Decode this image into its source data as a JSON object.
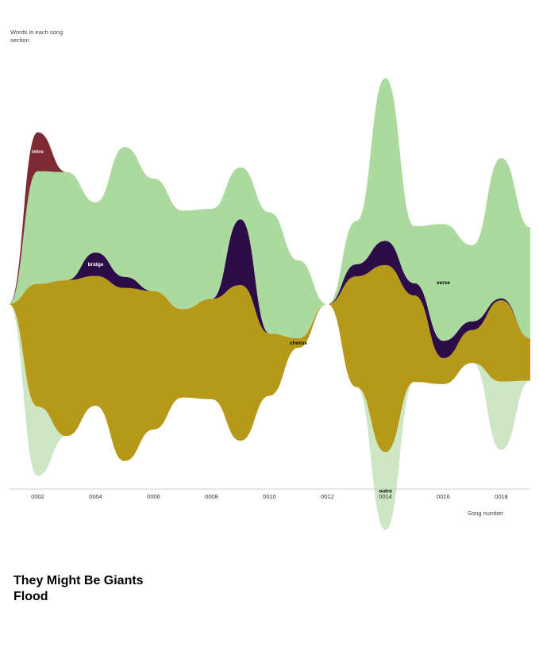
{
  "chart_data": {
    "type": "area",
    "style": "streamgraph",
    "ylabel": "Words in each song section",
    "xlabel": "Song number",
    "title": "They Might Be Giants",
    "subtitle": "Flood",
    "x": [
      1,
      2,
      3,
      4,
      5,
      6,
      7,
      8,
      9,
      10,
      11,
      12,
      13,
      14,
      15,
      16,
      17,
      18,
      19
    ],
    "tick_labels": [
      "0002",
      "0004",
      "0006",
      "0008",
      "0010",
      "0012",
      "0014",
      "0016",
      "0018"
    ],
    "tick_values": [
      2,
      4,
      6,
      8,
      10,
      12,
      14,
      16,
      18
    ],
    "series": [
      {
        "name": "intro",
        "color": "#7e2a35",
        "label_color": "#ffffff",
        "values": [
          0,
          45,
          0,
          0,
          0,
          0,
          0,
          0,
          0,
          0,
          0,
          0,
          0,
          0,
          0,
          0,
          0,
          0,
          0
        ]
      },
      {
        "name": "verse",
        "color": "#acd99d",
        "label_color": "#000000",
        "values": [
          0,
          130,
          125,
          58,
          150,
          130,
          114,
          104,
          60,
          140,
          90,
          0,
          50,
          188,
          66,
          135,
          88,
          162,
          128
        ]
      },
      {
        "name": "bridge",
        "color": "#2c0d47",
        "label_color": "#ffffff",
        "values": [
          0,
          0,
          0,
          27,
          13,
          0,
          0,
          0,
          76,
          0,
          0,
          0,
          14,
          28,
          14,
          20,
          10,
          2,
          0
        ]
      },
      {
        "name": "chorus",
        "color": "#b7991a",
        "label_color": "#000000",
        "values": [
          0,
          142,
          180,
          150,
          200,
          160,
          102,
          116,
          180,
          72,
          11,
          0,
          128,
          216,
          100,
          30,
          38,
          94,
          49
        ]
      },
      {
        "name": "outro",
        "color": "#cde6c4",
        "label_color": "#000000",
        "values": [
          0,
          80,
          0,
          0,
          0,
          0,
          0,
          0,
          0,
          0,
          0,
          0,
          0,
          90,
          0,
          0,
          0,
          79,
          0
        ]
      }
    ],
    "series_labels": [
      {
        "series": "intro",
        "x": 2,
        "y_words": 1
      },
      {
        "series": "bridge",
        "x": 4,
        "y_words": 1
      },
      {
        "series": "chorus",
        "x": 11,
        "y_words": 1
      },
      {
        "series": "outro",
        "x": 14,
        "y_words": 1
      },
      {
        "series": "verse",
        "x": 16,
        "y_words": 1
      }
    ]
  }
}
